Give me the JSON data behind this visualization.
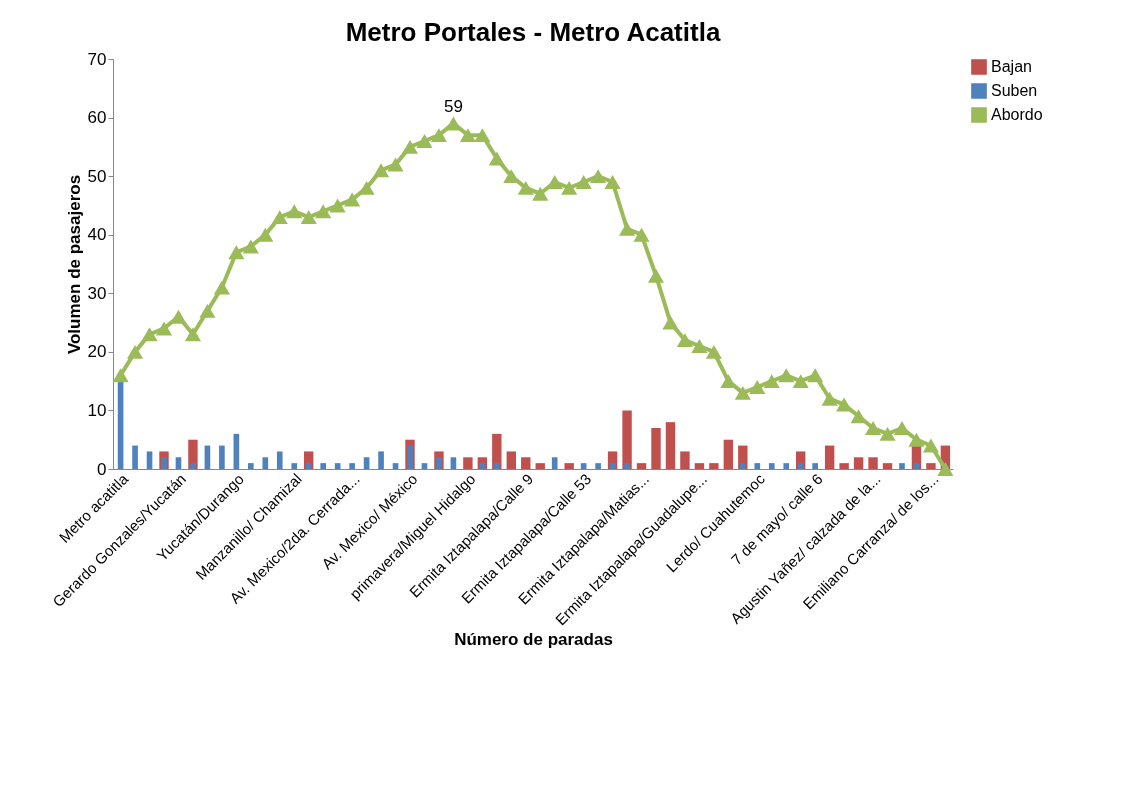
{
  "chart_data": {
    "type": "bar",
    "title": "Metro Portales - Metro Acatitla",
    "xlabel": "Número de paradas",
    "ylabel": "Volumen de pasajeros",
    "categories": [
      "Metro acatitla",
      null,
      null,
      null,
      "Gerardo Gonzales/Yucatán",
      null,
      null,
      null,
      "Yucatán/Durango",
      null,
      null,
      null,
      "Manzanillo/ Chamizal",
      null,
      null,
      null,
      "Av. Mexico/2da. Cerrada...",
      null,
      null,
      null,
      "Av. Mexico/ México",
      null,
      null,
      null,
      "primavera/Miguel Hidalgo",
      null,
      null,
      null,
      "Ermita Iztapalapa/Calle 9",
      null,
      null,
      null,
      "Ermita Iztapalapa/Calle 53",
      null,
      null,
      null,
      "Ermita Iztapalapa/Matias...",
      null,
      null,
      null,
      "Ermita Iztapalapa/Guadalupe...",
      null,
      null,
      null,
      "Lerdo/ Cuahutemoc",
      null,
      null,
      null,
      "7 de mayo/ calle 6",
      null,
      null,
      null,
      "Agustin Yañez/ calzada de la...",
      null,
      null,
      null,
      "Emiliano Carranza/ de los...",
      null
    ],
    "series": [
      {
        "name": "Bajan",
        "color": "#c0504d",
        "values": [
          0,
          0,
          0,
          3,
          0,
          5,
          0,
          0,
          0,
          0,
          0,
          0,
          0,
          3,
          0,
          0,
          0,
          0,
          0,
          0,
          5,
          0,
          3,
          0,
          2,
          2,
          6,
          3,
          2,
          1,
          0,
          1,
          0,
          0,
          3,
          10,
          1,
          7,
          8,
          3,
          1,
          1,
          5,
          4,
          0,
          0,
          0,
          3,
          0,
          4,
          1,
          2,
          2,
          1,
          0,
          4,
          1,
          4
        ]
      },
      {
        "name": "Suben",
        "color": "#4f81bd",
        "values": [
          15,
          4,
          3,
          2,
          2,
          1,
          4,
          4,
          6,
          1,
          2,
          3,
          1,
          1,
          1,
          1,
          1,
          2,
          3,
          1,
          4,
          1,
          2,
          2,
          0,
          1,
          1,
          0,
          0,
          0,
          2,
          0,
          1,
          1,
          1,
          1,
          0,
          0,
          0,
          0,
          0,
          0,
          0,
          1,
          1,
          1,
          1,
          1,
          1,
          0,
          0,
          0,
          0,
          0,
          1,
          1,
          0,
          0
        ]
      },
      {
        "name": "Abordo",
        "type": "line",
        "color": "#9bbb59",
        "values": [
          16,
          20,
          23,
          24,
          26,
          23,
          27,
          31,
          37,
          38,
          40,
          43,
          44,
          43,
          44,
          45,
          46,
          48,
          51,
          52,
          55,
          56,
          57,
          59,
          57,
          57,
          53,
          50,
          48,
          47,
          49,
          48,
          49,
          50,
          49,
          41,
          40,
          33,
          25,
          22,
          21,
          20,
          15,
          13,
          14,
          15,
          16,
          15,
          16,
          12,
          11,
          9,
          7,
          6,
          7,
          5,
          4,
          0
        ],
        "value_labels": [
          null,
          null,
          null,
          null,
          null,
          null,
          null,
          null,
          null,
          null,
          null,
          null,
          null,
          null,
          null,
          null,
          null,
          null,
          null,
          null,
          null,
          null,
          null,
          "59",
          null,
          null,
          null,
          null,
          null,
          null,
          null,
          null,
          null,
          null,
          null,
          null,
          null,
          null,
          null,
          null,
          null,
          null,
          null,
          null,
          null,
          null,
          null,
          null,
          null,
          null,
          null,
          null,
          null,
          null,
          null,
          null,
          null,
          null
        ]
      }
    ],
    "ylim": [
      0,
      70
    ],
    "yticks": [
      0,
      10,
      20,
      30,
      40,
      50,
      60,
      70
    ],
    "grid": false,
    "legend": "right",
    "marker": "triangle",
    "line_style": "solid"
  }
}
